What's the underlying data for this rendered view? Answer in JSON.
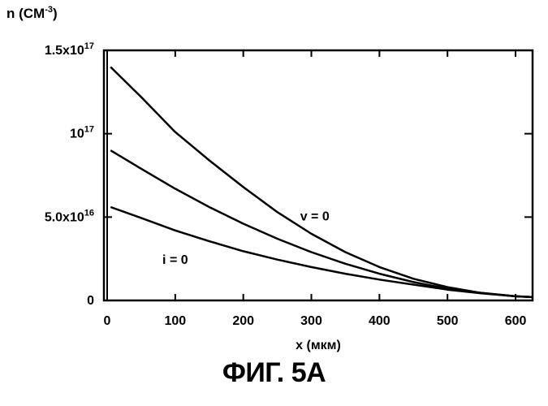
{
  "figure_caption": "ФИГ. 5А",
  "chart_data": {
    "type": "line",
    "title": "",
    "ylabel": "n (CM",
    "ylabel_superscript": "-3",
    "ylabel_close": ")",
    "xlabel": "x (мкм)",
    "xlim": [
      0,
      625
    ],
    "ylim": [
      0,
      1.5e+17
    ],
    "grid": false,
    "x_ticks": [
      {
        "value": 0,
        "label": "0"
      },
      {
        "value": 100,
        "label": "100"
      },
      {
        "value": 200,
        "label": "200"
      },
      {
        "value": 300,
        "label": "300"
      },
      {
        "value": 400,
        "label": "400"
      },
      {
        "value": 500,
        "label": "500"
      },
      {
        "value": 600,
        "label": "600"
      }
    ],
    "y_ticks": [
      {
        "value": 0,
        "label": "0",
        "sup": ""
      },
      {
        "value": 5e+16,
        "label": "5.0x10",
        "sup": "16"
      },
      {
        "value": 1e+17,
        "label": "10",
        "sup": "17"
      },
      {
        "value": 1.5e+17,
        "label": "1.5x10",
        "sup": "17"
      }
    ],
    "annotations": [
      {
        "text": "v = 0",
        "x": 305,
        "y": 4.8e+16
      },
      {
        "text": "i = 0",
        "x": 100,
        "y": 2.2e+16
      }
    ],
    "series": [
      {
        "values": [
          {
            "x": 5,
            "y": 1.4e+17
          },
          {
            "x": 50,
            "y": 1.22e+17
          },
          {
            "x": 100,
            "y": 1.01e+17
          },
          {
            "x": 150,
            "y": 8.4e+16
          },
          {
            "x": 200,
            "y": 6.8e+16
          },
          {
            "x": 250,
            "y": 5.3e+16
          },
          {
            "x": 300,
            "y": 4e+16
          },
          {
            "x": 350,
            "y": 2.9e+16
          },
          {
            "x": 400,
            "y": 2e+16
          },
          {
            "x": 450,
            "y": 1.3e+16
          },
          {
            "x": 500,
            "y": 8000000000000000.0
          },
          {
            "x": 550,
            "y": 4500000000000000.0
          },
          {
            "x": 600,
            "y": 2500000000000000.0
          },
          {
            "x": 625,
            "y": 2000000000000000.0
          }
        ]
      },
      {
        "values": [
          {
            "x": 5,
            "y": 9e+16
          },
          {
            "x": 50,
            "y": 7.9e+16
          },
          {
            "x": 100,
            "y": 6.7e+16
          },
          {
            "x": 150,
            "y": 5.6e+16
          },
          {
            "x": 200,
            "y": 4.6e+16
          },
          {
            "x": 250,
            "y": 3.7e+16
          },
          {
            "x": 300,
            "y": 2.9e+16
          },
          {
            "x": 350,
            "y": 2.2e+16
          },
          {
            "x": 400,
            "y": 1.6e+16
          },
          {
            "x": 450,
            "y": 1.1e+16
          },
          {
            "x": 500,
            "y": 7000000000000000.0
          },
          {
            "x": 550,
            "y": 4500000000000000.0
          },
          {
            "x": 600,
            "y": 2500000000000000.0
          },
          {
            "x": 625,
            "y": 2000000000000000.0
          }
        ]
      },
      {
        "values": [
          {
            "x": 5,
            "y": 5.6e+16
          },
          {
            "x": 50,
            "y": 4.95e+16
          },
          {
            "x": 100,
            "y": 4.2e+16
          },
          {
            "x": 150,
            "y": 3.55e+16
          },
          {
            "x": 200,
            "y": 2.95e+16
          },
          {
            "x": 250,
            "y": 2.45e+16
          },
          {
            "x": 300,
            "y": 2e+16
          },
          {
            "x": 350,
            "y": 1.6e+16
          },
          {
            "x": 400,
            "y": 1.25e+16
          },
          {
            "x": 450,
            "y": 9500000000000000.0
          },
          {
            "x": 500,
            "y": 6500000000000000.0
          },
          {
            "x": 550,
            "y": 4300000000000000.0
          },
          {
            "x": 600,
            "y": 2500000000000000.0
          },
          {
            "x": 625,
            "y": 2000000000000000.0
          }
        ]
      }
    ],
    "colors": {
      "line": "#000000",
      "background": "#ffffff"
    }
  }
}
